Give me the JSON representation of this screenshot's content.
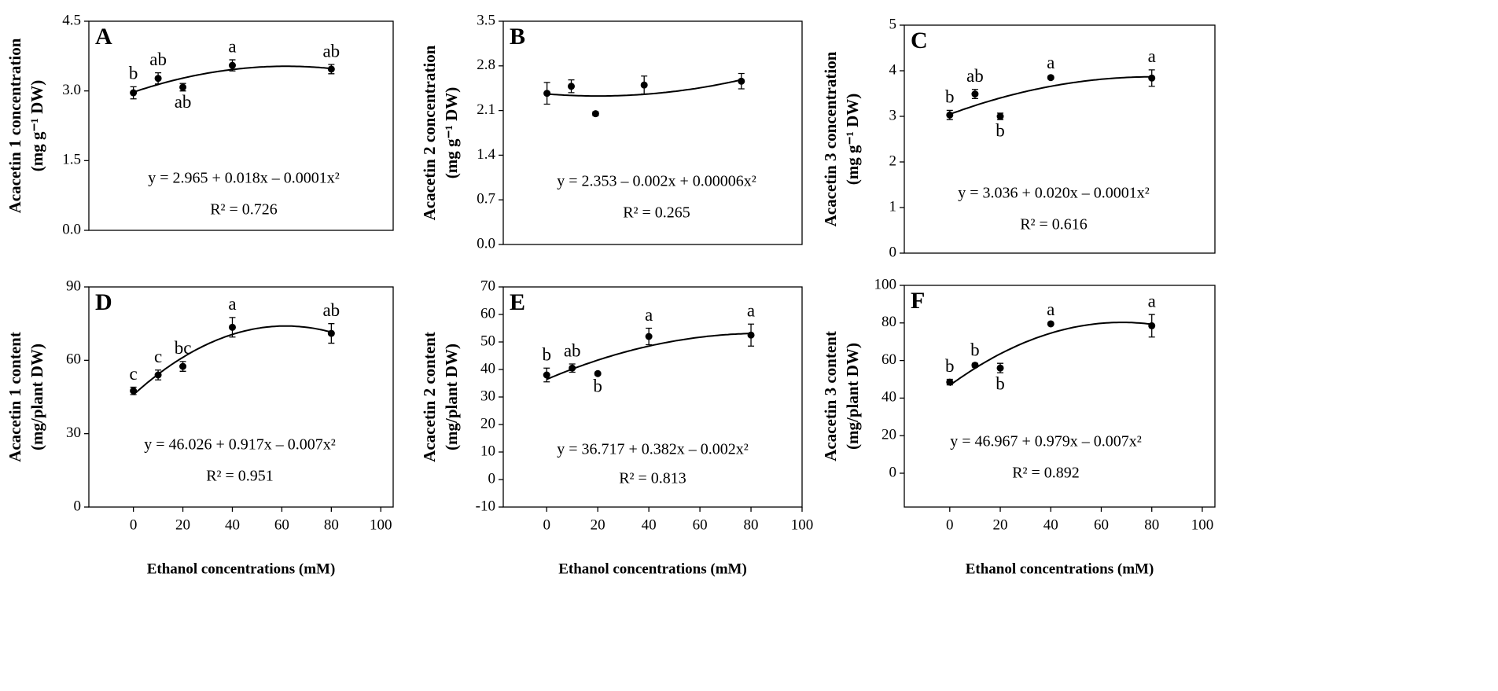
{
  "chart_data": [
    {
      "type": "scatter",
      "panel_label": "A",
      "ylabel": [
        "Acacetin 1 concentration",
        "(mg g⁻¹ DW)"
      ],
      "x": [
        0,
        10,
        20,
        40,
        80
      ],
      "values": [
        2.96,
        3.27,
        3.08,
        3.55,
        3.47
      ],
      "errors": [
        0.13,
        0.12,
        0.08,
        0.12,
        0.1
      ],
      "letters": [
        "b",
        "ab",
        "ab",
        "a",
        "ab"
      ],
      "letter_positions": [
        "above",
        "above",
        "below",
        "above",
        "above"
      ],
      "equation": "y = 2.965 + 0.018x – 0.0001x²",
      "r2": "R² = 0.726",
      "xlim": [
        -18,
        105
      ],
      "ylim": [
        0,
        4.5
      ],
      "yticks": [
        {
          "value": 0,
          "label": "0.0"
        },
        1.5,
        {
          "value": 3,
          "label": "3.0"
        },
        4.5
      ],
      "color": "#000000"
    },
    {
      "type": "scatter",
      "panel_label": "B",
      "ylabel": [
        "Acacetin 2 concentration",
        "(mg g⁻¹ DW)"
      ],
      "x": [
        0,
        10,
        20,
        40,
        80
      ],
      "values": [
        2.37,
        2.48,
        2.05,
        2.5,
        2.56
      ],
      "errors": [
        0.17,
        0.1,
        0.03,
        0.14,
        0.12
      ],
      "equation": "y = 2.353 – 0.002x + 0.00006x²",
      "r2": "R² = 0.265",
      "xlim": [
        -18,
        105
      ],
      "ylim": [
        0,
        3.5
      ],
      "yticks": [
        {
          "value": 0,
          "label": "0.0"
        },
        0.7,
        1.4,
        2.1,
        2.8,
        3.5
      ],
      "color": "#000000"
    },
    {
      "type": "scatter",
      "panel_label": "C",
      "ylabel": [
        "Acacetin 3 concentration",
        "(mg g⁻¹ DW)"
      ],
      "x": [
        0,
        10,
        20,
        40,
        80
      ],
      "values": [
        3.03,
        3.49,
        3.0,
        3.85,
        3.84
      ],
      "errors": [
        0.1,
        0.1,
        0.07,
        0.03,
        0.18
      ],
      "letters": [
        "b",
        "ab",
        "b",
        "a",
        "a"
      ],
      "letter_positions": [
        "above",
        "above",
        "below",
        "above",
        "above"
      ],
      "equation": "y = 3.036 + 0.020x – 0.0001x²",
      "r2": "R² = 0.616",
      "xlim": [
        -18,
        105
      ],
      "ylim": [
        0,
        5
      ],
      "yticks": [
        0,
        1,
        2,
        3,
        4,
        5
      ],
      "color": "#000000"
    },
    {
      "type": "scatter",
      "panel_label": "D",
      "ylabel": [
        "Acacetin 1 content",
        "(mg/plant DW)"
      ],
      "xlabel": "Ethanol concentrations (mM)",
      "x": [
        0,
        10,
        20,
        40,
        80
      ],
      "values": [
        47.5,
        54,
        57.5,
        73.5,
        71
      ],
      "errors": [
        1.5,
        2,
        2,
        4,
        4
      ],
      "letters": [
        "c",
        "c",
        "bc",
        "a",
        "ab"
      ],
      "letter_positions": [
        "above",
        "above",
        "above",
        "above",
        "above"
      ],
      "equation": "y = 46.026 + 0.917x – 0.007x²",
      "r2": "R² = 0.951",
      "xlim": [
        -18,
        105
      ],
      "xticks": [
        0,
        20,
        40,
        60,
        80,
        100
      ],
      "ylim": [
        0,
        90
      ],
      "yticks": [
        0,
        30,
        60,
        90
      ],
      "color": "#000000"
    },
    {
      "type": "scatter",
      "panel_label": "E",
      "ylabel": [
        "Acacetin 2 content",
        "(mg/plant DW)"
      ],
      "xlabel": "Ethanol concentrations (mM)",
      "x": [
        0,
        10,
        20,
        40,
        80
      ],
      "values": [
        38,
        40.5,
        38.5,
        52,
        52.5
      ],
      "errors": [
        2.5,
        1.5,
        0.5,
        3,
        4
      ],
      "letters": [
        "b",
        "ab",
        "b",
        "a",
        "a"
      ],
      "letter_positions": [
        "above",
        "above",
        "below",
        "above",
        "above"
      ],
      "equation": "y = 36.717 + 0.382x – 0.002x²",
      "r2": "R² = 0.813",
      "xlim": [
        -17,
        100
      ],
      "xticks": [
        0,
        20,
        40,
        60,
        80,
        100
      ],
      "ylim": [
        -10,
        70
      ],
      "yticks": [
        -10,
        0,
        10,
        20,
        30,
        40,
        50,
        60,
        70
      ],
      "color": "#000000"
    },
    {
      "type": "scatter",
      "panel_label": "F",
      "ylabel": [
        "Acacetin 3 content",
        "(mg/plant DW)"
      ],
      "xlabel": "Ethanol concentrations (mM)",
      "x": [
        0,
        10,
        20,
        40,
        80
      ],
      "values": [
        48.5,
        57.5,
        56,
        79.5,
        78.5
      ],
      "errors": [
        1.5,
        1,
        2.5,
        0.5,
        6
      ],
      "letters": [
        "b",
        "b",
        "b",
        "a",
        "a"
      ],
      "letter_positions": [
        "above",
        "above",
        "below",
        "above",
        "above"
      ],
      "equation": "y = 46.967 + 0.979x – 0.007x²",
      "r2": "R² = 0.892",
      "xlim": [
        -18,
        105
      ],
      "xticks": [
        0,
        20,
        40,
        60,
        80,
        100
      ],
      "ylim": [
        -18,
        100
      ],
      "yticks": [
        0,
        20,
        40,
        60,
        80,
        100
      ],
      "color": "#000000"
    }
  ]
}
